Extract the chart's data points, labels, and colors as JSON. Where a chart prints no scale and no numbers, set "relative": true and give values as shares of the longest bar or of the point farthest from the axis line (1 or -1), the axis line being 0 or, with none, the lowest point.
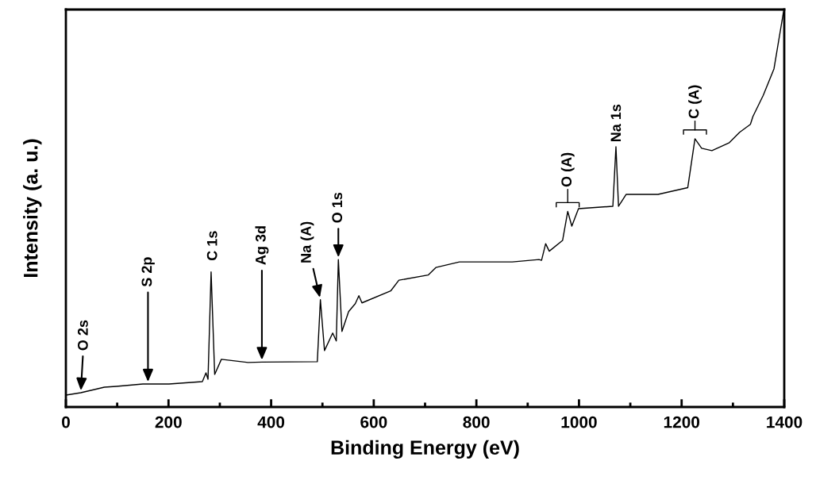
{
  "chart_data": {
    "type": "line",
    "relative": true,
    "xlabel": "Binding Energy (eV)",
    "ylabel": "Intensity (a. u.)",
    "xlim": [
      0,
      1400
    ],
    "xticks": [
      0,
      {
        "value": 100,
        "label": null
      },
      200,
      {
        "value": 300,
        "label": null
      },
      400,
      {
        "value": 500,
        "label": null
      },
      600,
      {
        "value": 700,
        "label": null
      },
      800,
      {
        "value": 900,
        "label": null
      },
      1000,
      {
        "value": 1100,
        "label": null
      },
      1200,
      {
        "value": 1300,
        "label": null
      },
      1400
    ],
    "grid": false,
    "marker": "none",
    "line_style": "solid",
    "series": [
      {
        "color": "#000000",
        "x": [
          0,
          29,
          62,
          75,
          98,
          150,
          160,
          201,
          266,
          273,
          277,
          283,
          290,
          303,
          355,
          382,
          490,
          496,
          504,
          520,
          527,
          531,
          538,
          551,
          564,
          571,
          577,
          633,
          649,
          706,
          721,
          767,
          870,
          922,
          927,
          935,
          942,
          968,
          978,
          986,
          999,
          1066,
          1072,
          1077,
          1092,
          1154,
          1212,
          1226,
          1239,
          1259,
          1293,
          1313,
          1334,
          1339,
          1359,
          1380,
          1398,
          1400
        ],
        "values": [
          0.03,
          0.036,
          0.046,
          0.05,
          0.052,
          0.058,
          0.058,
          0.058,
          0.064,
          0.086,
          0.07,
          0.34,
          0.082,
          0.12,
          0.112,
          0.113,
          0.114,
          0.27,
          0.142,
          0.186,
          0.166,
          0.371,
          0.19,
          0.24,
          0.26,
          0.28,
          0.262,
          0.292,
          0.319,
          0.332,
          0.351,
          0.365,
          0.365,
          0.371,
          0.369,
          0.411,
          0.392,
          0.419,
          0.492,
          0.455,
          0.499,
          0.505,
          0.655,
          0.505,
          0.535,
          0.535,
          0.552,
          0.675,
          0.651,
          0.645,
          0.665,
          0.691,
          0.711,
          0.731,
          0.784,
          0.851,
          0.99,
          1.0
        ]
      }
    ],
    "annotations": [
      {
        "text": "O 2s",
        "x": 29,
        "y": 0.036
      },
      {
        "text": "S 2p",
        "x": 160,
        "y": 0.058
      },
      {
        "text": "C 1s",
        "x": 283,
        "y": 0.34
      },
      {
        "text": "Ag 3d",
        "x": 382,
        "y": 0.113
      },
      {
        "text": "Na (A)",
        "x": 496,
        "y": 0.27
      },
      {
        "text": "O 1s",
        "x": 531,
        "y": 0.371
      },
      {
        "text": "O (A)",
        "x": 978,
        "y": 0.492
      },
      {
        "text": "Na 1s",
        "x": 1072,
        "y": 0.655
      },
      {
        "text": "C (A)",
        "x": 1226,
        "y": 0.675
      }
    ]
  }
}
